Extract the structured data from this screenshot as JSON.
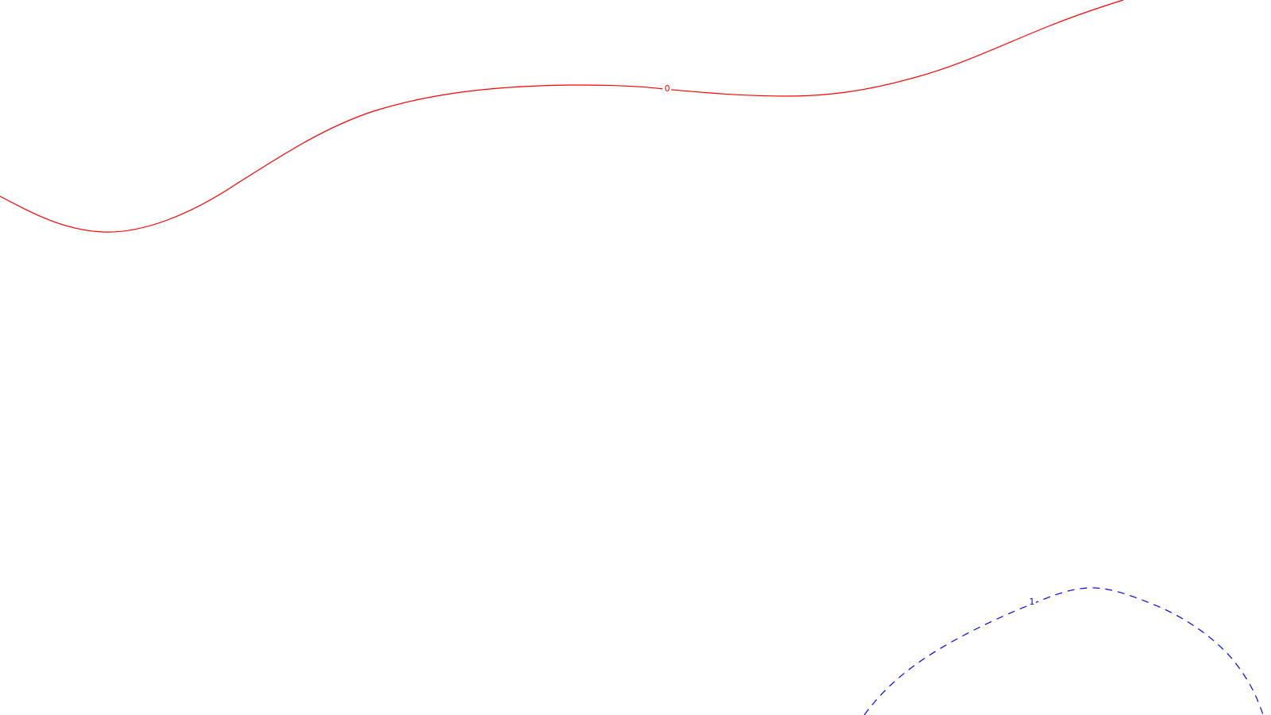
{
  "contours": [
    {
      "id": "contour-0",
      "label": "0",
      "color": "#ff0000",
      "style": "solid"
    },
    {
      "id": "contour-1",
      "label": "1",
      "color": "#0000ff",
      "style": "dashed"
    }
  ],
  "background_color": "#ffffff"
}
